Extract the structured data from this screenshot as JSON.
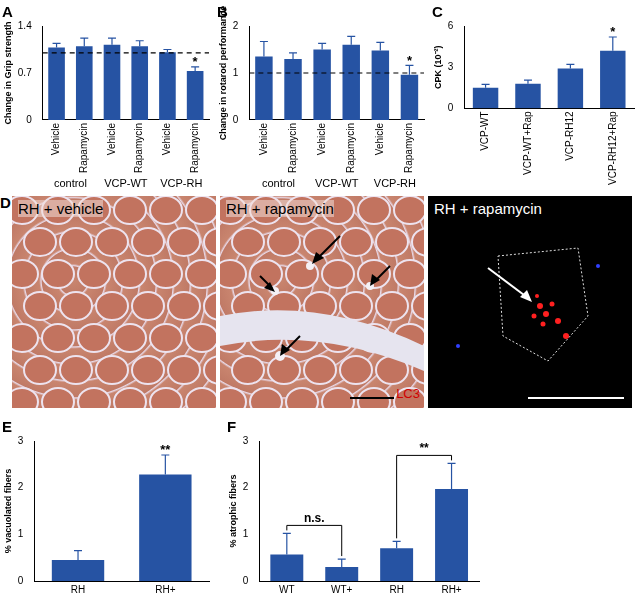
{
  "chart_data": [
    {
      "type": "bar",
      "title": "A",
      "y_label": "Change in Grip strength",
      "categories": [
        "Vehicle",
        "Rapamycin",
        "Vehicle",
        "Rapamycin",
        "Vehicle",
        "Rapamycin"
      ],
      "groups": [
        "control",
        "VCP-WT",
        "VCP-RH"
      ],
      "values": [
        1.08,
        1.1,
        1.12,
        1.1,
        1.01,
        0.73
      ],
      "errors": [
        0.06,
        0.12,
        0.1,
        0.08,
        0.04,
        0.06
      ],
      "significance": [
        null,
        null,
        null,
        null,
        null,
        "*"
      ],
      "reference_line": 1,
      "color": "#2653a3",
      "ylim": [
        0,
        1.4
      ],
      "yticks": [
        0,
        0.7,
        1.4
      ],
      "grid": false
    },
    {
      "type": "bar",
      "title": "B",
      "y_label": "Change in rotarod performance",
      "categories": [
        "Vehicle",
        "Rapamycin",
        "Vehicle",
        "Rapamycin",
        "Vehicle",
        "Rapamycin"
      ],
      "groups": [
        "control",
        "VCP-WT",
        "VCP-RH"
      ],
      "values": [
        1.35,
        1.3,
        1.5,
        1.6,
        1.48,
        0.96
      ],
      "errors": [
        0.32,
        0.13,
        0.13,
        0.18,
        0.17,
        0.2
      ],
      "significance": [
        null,
        null,
        null,
        null,
        null,
        "*"
      ],
      "reference_line": 1,
      "color": "#2653a3",
      "ylim": [
        0,
        2
      ],
      "yticks": [
        0,
        1,
        2
      ],
      "grid": false
    },
    {
      "type": "bar",
      "title": "C",
      "y_label": "CPK (10⁻²)",
      "categories": [
        "VCP-WT",
        "VCP-WT+Rap",
        "VCP-RH12",
        "VCP-RH12+Rap"
      ],
      "values": [
        1.5,
        1.8,
        2.9,
        4.2
      ],
      "errors": [
        0.25,
        0.25,
        0.3,
        1.0
      ],
      "significance": [
        null,
        null,
        null,
        "*"
      ],
      "color": "#2653a3",
      "ylim": [
        0,
        6
      ],
      "yticks": [
        0,
        3,
        6
      ],
      "grid": false
    },
    {
      "type": "bar",
      "title": "E",
      "y_label": "% vacuolated fibers",
      "categories": [
        "RH",
        "RH+"
      ],
      "values": [
        0.45,
        2.28
      ],
      "errors": [
        0.2,
        0.42
      ],
      "significance": [
        null,
        "**"
      ],
      "color": "#2653a3",
      "ylim": [
        0,
        3
      ],
      "yticks": [
        0,
        1,
        2,
        3
      ],
      "grid": false
    },
    {
      "type": "bar",
      "title": "F",
      "y_label": "% atrophic fibers",
      "categories": [
        "WT",
        "WT+",
        "RH",
        "RH+"
      ],
      "values": [
        0.57,
        0.3,
        0.7,
        1.97
      ],
      "errors": [
        0.45,
        0.17,
        0.15,
        0.55
      ],
      "comparisons": [
        {
          "between": [
            "WT",
            "WT+"
          ],
          "label": "n.s."
        },
        {
          "between": [
            "RH",
            "RH+"
          ],
          "label": "**"
        }
      ],
      "color": "#2653a3",
      "ylim": [
        0,
        3
      ],
      "yticks": [
        0,
        1,
        2,
        3
      ],
      "grid": false
    }
  ],
  "panel_d": {
    "label": "D",
    "images": [
      "RH + vehicle",
      "RH + rapamycin",
      "RH + rapamycin"
    ],
    "stain_label": "LC3"
  }
}
